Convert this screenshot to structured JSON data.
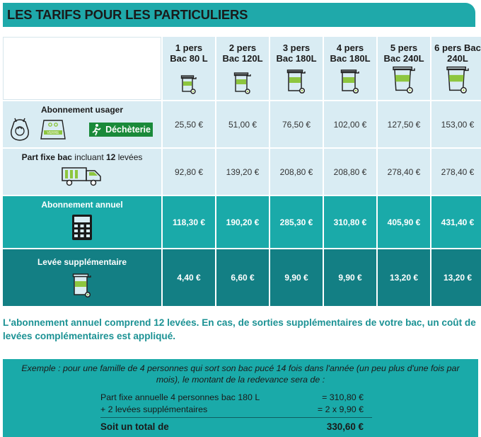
{
  "title": "LES TARIFS POUR LES PARTICULIERS",
  "columns": [
    {
      "line1": "1 pers",
      "line2": "Bac 80 L"
    },
    {
      "line1": "2 pers",
      "line2": "Bac 120L"
    },
    {
      "line1": "3 pers",
      "line2": "Bac 180L"
    },
    {
      "line1": "4 pers",
      "line2": "Bac 180L"
    },
    {
      "line1": "5 pers",
      "line2": "Bac 240L"
    },
    {
      "line1": "6 pers Bac",
      "line2": "240L"
    }
  ],
  "rows": {
    "abonnement_usager": {
      "label": "Abonnement usager",
      "verre": "VERRE",
      "decheterie": "Déchèterie",
      "values": [
        "25,50 €",
        "51,00 €",
        "76,50 €",
        "102,00 €",
        "127,50 €",
        "153,00 €"
      ]
    },
    "part_fixe": {
      "label_bold_1": "Part fixe bac",
      "label_normal_1": " incluant ",
      "label_bold_2": "12",
      "label_normal_2": " levées",
      "values": [
        "92,80 €",
        "139,20 €",
        "208,80 €",
        "208,80 €",
        "278,40 €",
        "278,40 €"
      ]
    },
    "abonnement_annuel": {
      "label": "Abonnement annuel",
      "values": [
        "118,30 €",
        "190,20 €",
        "285,30 €",
        "310,80 €",
        "405,90 €",
        "431,40 €"
      ]
    },
    "levee_supp": {
      "label": "Levée supplémentaire",
      "values": [
        "4,40 €",
        "6,60 €",
        "9,90 €",
        "9,90 €",
        "13,20 €",
        "13,20 €"
      ]
    }
  },
  "note": "L'abonnement annuel comprend 12 levées. En cas, de sorties supplémentaires de votre bac, un coût de levées complémentaires est appliqué.",
  "example": {
    "intro": "Exemple : pour une famille de 4 personnes qui sort son bac pucé 14 fois dans l'année (un peu plus d'une fois par mois), le montant de la redevance sera de :",
    "line1_label": "Part fixe annuelle 4 personnes bac 180 L",
    "line1_value": "=  310,80 €",
    "line2_label": "+ 2 levées supplémentaires",
    "line2_value": "= 2 x 9,90 €",
    "total_label": "Soit un total de",
    "total_value": "330,60 €"
  },
  "colors": {
    "teal": "#1aaaa9",
    "dark_teal": "#137f84",
    "light_blue": "#d9ecf3",
    "green": "#8dc63f",
    "icon_green": "#1a8a3a"
  },
  "icons": [
    "bin-icon",
    "recycle-bag-icon",
    "glass-container-icon",
    "decheterie-icon",
    "garbage-truck-icon",
    "calculator-icon"
  ]
}
